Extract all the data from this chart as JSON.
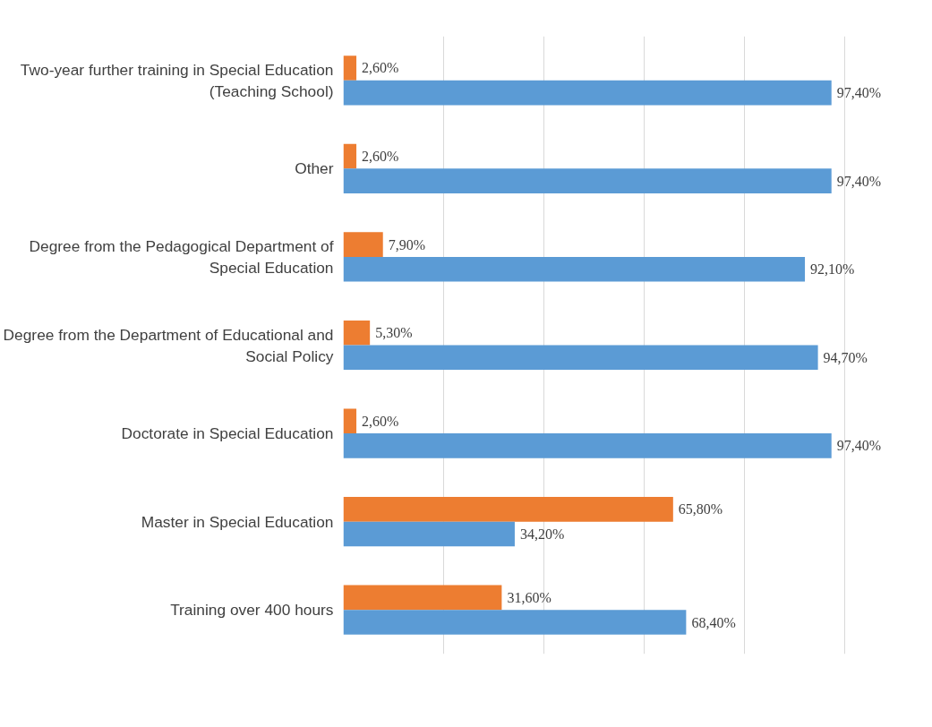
{
  "chart_data": {
    "type": "bar",
    "orientation": "horizontal",
    "categories": [
      "Two-year further training in Special Education (Teaching School)",
      "Other",
      "Degree from the Pedagogical Department of Special Education",
      "Degree from the Department of Educational and Social Policy",
      "Doctorate in Special Education",
      "Master in Special Education",
      "Training over 400 hours"
    ],
    "series": [
      {
        "color": "#ed7d31",
        "values": [
          2.6,
          2.6,
          7.9,
          5.3,
          2.6,
          65.8,
          31.6
        ],
        "value_labels": [
          "2,60%",
          "2,60%",
          "7,90%",
          "5,30%",
          "2,60%",
          "65,80%",
          "31,60%"
        ]
      },
      {
        "color": "#5b9bd5",
        "values": [
          97.4,
          97.4,
          92.1,
          94.7,
          97.4,
          34.2,
          68.4
        ],
        "value_labels": [
          "97,40%",
          "97,40%",
          "92,10%",
          "94,70%",
          "97,40%",
          "34,20%",
          "68,40%"
        ]
      }
    ],
    "tick_labels": false,
    "grid": "x"
  }
}
